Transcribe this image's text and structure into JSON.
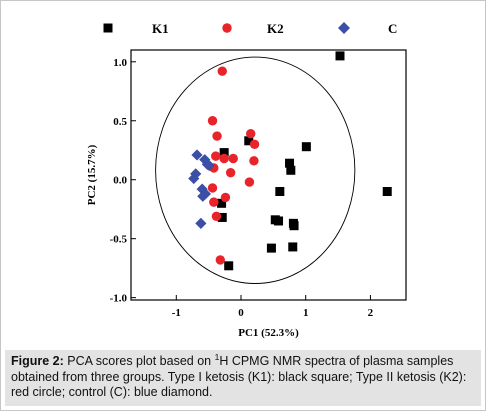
{
  "chart_data": {
    "type": "scatter",
    "title": "",
    "xlabel": "PC1 (52.3%)",
    "ylabel": "PC2 (15.7%)",
    "xlim": [
      -1.7,
      2.55
    ],
    "ylim": [
      -1.02,
      1.1
    ],
    "x_ticks": [
      {
        "value": -1,
        "label": "-1"
      },
      {
        "value": 0,
        "label": "0"
      },
      {
        "value": 1,
        "label": "1"
      },
      {
        "value": 2,
        "label": "2"
      }
    ],
    "y_ticks": [
      {
        "value": 1.0,
        "label": "1.0"
      },
      {
        "value": 0.5,
        "label": "0.5"
      },
      {
        "value": 0.0,
        "label": "0.0"
      },
      {
        "value": -0.5,
        "label": "-0.5"
      },
      {
        "value": -1.0,
        "label": "-1.0"
      }
    ],
    "grid": false,
    "legend_position": "top",
    "confidence_ellipse": {
      "center": [
        0.22,
        0.08
      ],
      "radius_x": 1.54,
      "radius_y": 0.96
    },
    "series": [
      {
        "name": "K1",
        "marker": "square",
        "color": "#000000",
        "x": [
          1.53,
          -0.26,
          0.12,
          0.75,
          1.01,
          0.77,
          0.6,
          2.26,
          -0.3,
          -0.29,
          0.53,
          0.58,
          0.81,
          0.82,
          0.47,
          0.8,
          -0.19
        ],
        "y": [
          1.05,
          0.23,
          0.33,
          0.14,
          0.28,
          0.08,
          -0.1,
          -0.1,
          -0.2,
          -0.32,
          -0.34,
          -0.35,
          -0.37,
          -0.39,
          -0.58,
          -0.57,
          -0.73
        ]
      },
      {
        "name": "K2",
        "marker": "circle",
        "color": "#e8232a",
        "x": [
          -0.29,
          -0.44,
          -0.37,
          0.15,
          0.21,
          -0.39,
          -0.26,
          -0.12,
          -0.42,
          -0.16,
          0.2,
          0.13,
          -0.44,
          -0.24,
          -0.42,
          -0.38,
          -0.32
        ],
        "y": [
          0.92,
          0.5,
          0.37,
          0.39,
          0.3,
          0.2,
          0.18,
          0.18,
          0.1,
          0.06,
          0.16,
          -0.02,
          -0.07,
          -0.15,
          -0.19,
          -0.31,
          -0.68
        ]
      },
      {
        "name": "C",
        "marker": "diamond",
        "color": "#3c4fa6",
        "x": [
          -0.68,
          -0.56,
          -0.52,
          -0.49,
          -0.7,
          -0.73,
          -0.6,
          -0.55,
          -0.59,
          -0.62
        ],
        "y": [
          0.21,
          0.17,
          0.13,
          0.12,
          0.05,
          0.01,
          -0.08,
          -0.12,
          -0.14,
          -0.37
        ]
      }
    ]
  },
  "caption": {
    "label": "Figure 2:",
    "text_before_sup": " PCA scores plot based on ",
    "sup": "1",
    "text_after_sup": "H CPMG NMR spectra of plasma samples obtained from three groups. Type I ketosis (K1): black square; Type II ketosis (K2): red circle; control (C): blue diamond."
  }
}
